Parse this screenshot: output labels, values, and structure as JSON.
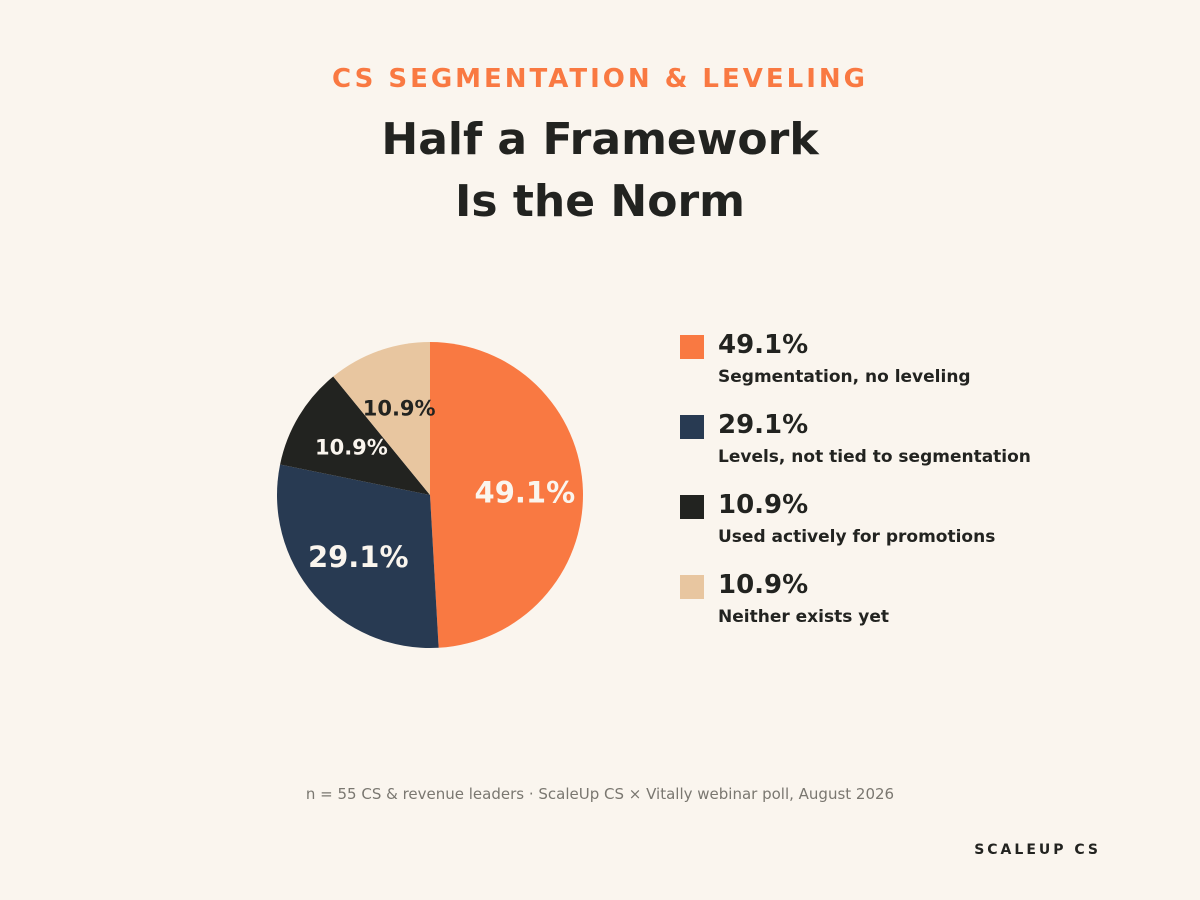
{
  "header": {
    "eyebrow": "CS SEGMENTATION & LEVELING",
    "title_line1": "Half a Framework",
    "title_line2": "Is the Norm"
  },
  "chart_data": {
    "type": "pie",
    "slices": [
      {
        "value": 49.1,
        "label": "49.1%",
        "name": "Segmentation, no leveling",
        "color": "#f97942",
        "label_color": "#faf5ee"
      },
      {
        "value": 29.1,
        "label": "29.1%",
        "name": "Levels, not tied to segmentation",
        "color": "#283a52",
        "label_color": "#faf5ee"
      },
      {
        "value": 10.9,
        "label": "10.9%",
        "name": "Used actively for promotions",
        "color": "#222320",
        "label_color": "#faf5ee"
      },
      {
        "value": 10.9,
        "label": "10.9%",
        "name": "Neither exists yet",
        "color": "#e8c6a0",
        "label_color": "#222320"
      }
    ],
    "start_angle": "12 o'clock",
    "direction": "clockwise",
    "legend_position": "right"
  },
  "footnote": "n = 55 CS & revenue leaders · ScaleUp CS × Vitally webinar poll, August 2026",
  "brand": "SCALEUP CS"
}
